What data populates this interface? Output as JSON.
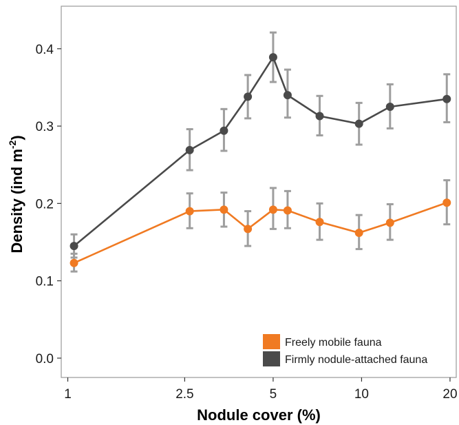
{
  "chart_data": {
    "type": "line",
    "title": "",
    "xlabel": "Nodule cover (%)",
    "ylabel": "Density (ind m",
    "ylabel_superscript": "-2",
    "ylabel_suffix": ")",
    "x_scale": "log",
    "xlim": [
      0.95,
      21
    ],
    "ylim": [
      -0.025,
      0.455
    ],
    "x_ticks": [
      1,
      2.5,
      5,
      10,
      20
    ],
    "x_tick_labels": [
      "1",
      "2.5",
      "5",
      "10",
      "20"
    ],
    "y_ticks": [
      0.0,
      0.1,
      0.2,
      0.3,
      0.4
    ],
    "y_tick_labels": [
      "0.0",
      "0.1",
      "0.2",
      "0.3",
      "0.4"
    ],
    "grid": false,
    "legend_position": "bottom-right",
    "x": [
      1.05,
      2.6,
      3.4,
      4.1,
      5.0,
      5.6,
      7.2,
      9.8,
      12.5,
      19.5
    ],
    "series": [
      {
        "name": "Freely mobile fauna",
        "color": "#f07a22",
        "values": [
          0.123,
          0.19,
          0.192,
          0.167,
          0.192,
          0.191,
          0.176,
          0.162,
          0.175,
          0.201
        ],
        "error_low": [
          0.112,
          0.168,
          0.17,
          0.145,
          0.167,
          0.168,
          0.153,
          0.141,
          0.153,
          0.173
        ],
        "error_high": [
          0.135,
          0.213,
          0.214,
          0.19,
          0.22,
          0.216,
          0.2,
          0.185,
          0.199,
          0.23
        ]
      },
      {
        "name": "Firmly nodule-attached fauna",
        "color": "#4a4a4a",
        "values": [
          0.145,
          0.269,
          0.294,
          0.338,
          0.389,
          0.34,
          0.313,
          0.303,
          0.325,
          0.335
        ],
        "error_low": [
          0.13,
          0.243,
          0.268,
          0.31,
          0.357,
          0.311,
          0.288,
          0.276,
          0.297,
          0.305
        ],
        "error_high": [
          0.16,
          0.296,
          0.322,
          0.366,
          0.421,
          0.373,
          0.339,
          0.33,
          0.354,
          0.367
        ]
      }
    ],
    "errorbar_color": "#9e9e9e",
    "frame_color": "#9a9a9a"
  }
}
